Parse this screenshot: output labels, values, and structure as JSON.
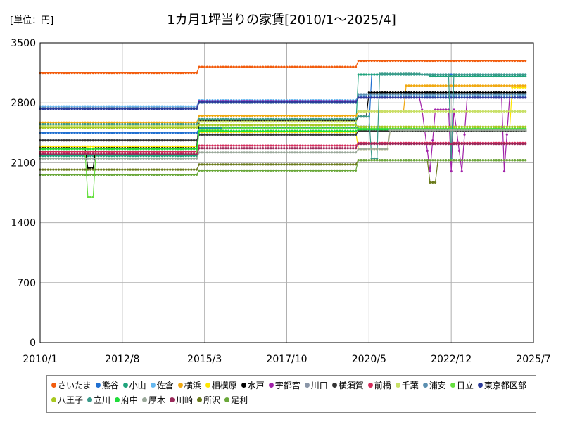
{
  "chart_data": {
    "type": "line",
    "title": "1カ月1坪当りの家賃[2010/1～2025/4]",
    "unit_label": "[単位：円]",
    "xlabel": "",
    "ylabel": "",
    "x_ticks": [
      "2010/1",
      "2012/8",
      "2015/3",
      "2017/10",
      "2020/5",
      "2022/12",
      "2025/7"
    ],
    "y_ticks": [
      "0",
      "700",
      "1400",
      "2100",
      "2800",
      "3500"
    ],
    "ylim": [
      0,
      3500
    ],
    "xlim": [
      "2010/1",
      "2025/7"
    ],
    "grid": true,
    "legend_position": "bottom",
    "marker": "dot",
    "series": [
      {
        "name": "さいたま",
        "color": "#f25c0d",
        "points": [
          [
            "2010/1",
            3150
          ],
          [
            "2014/12",
            3150
          ],
          [
            "2015/1",
            3220
          ],
          [
            "2019/12",
            3220
          ],
          [
            "2020/1",
            3290
          ],
          [
            "2025/4",
            3290
          ]
        ]
      },
      {
        "name": "熊谷",
        "color": "#1f6fd1",
        "points": [
          [
            "2010/1",
            2450
          ],
          [
            "2014/12",
            2450
          ],
          [
            "2015/1",
            2500
          ],
          [
            "2019/12",
            2500
          ],
          [
            "2020/1",
            2520
          ],
          [
            "2020/5",
            2520
          ],
          [
            "2020/6",
            3130
          ],
          [
            "2025/4",
            3130
          ]
        ]
      },
      {
        "name": "小山",
        "color": "#1fa47c",
        "points": [
          [
            "2010/1",
            2180
          ],
          [
            "2014/12",
            2180
          ],
          [
            "2015/1",
            2510
          ],
          [
            "2019/12",
            2510
          ],
          [
            "2020/1",
            3130
          ],
          [
            "2022/3",
            3130
          ],
          [
            "2022/4",
            3110
          ],
          [
            "2025/4",
            3110
          ]
        ]
      },
      {
        "name": "佐倉",
        "color": "#66b8f0",
        "points": [
          [
            "2010/1",
            2760
          ],
          [
            "2014/12",
            2760
          ],
          [
            "2015/1",
            2830
          ],
          [
            "2019/12",
            2830
          ],
          [
            "2020/1",
            2880
          ],
          [
            "2025/4",
            2880
          ]
        ]
      },
      {
        "name": "横浜",
        "color": "#f0a810",
        "points": [
          [
            "2010/1",
            2570
          ],
          [
            "2014/12",
            2570
          ],
          [
            "2015/1",
            2650
          ],
          [
            "2019/12",
            2650
          ],
          [
            "2020/1",
            2700
          ],
          [
            "2021/6",
            2700
          ],
          [
            "2021/7",
            3000
          ],
          [
            "2025/4",
            3000
          ]
        ]
      },
      {
        "name": "相模原",
        "color": "#ffe600",
        "points": [
          [
            "2010/1",
            2290
          ],
          [
            "2014/12",
            2290
          ],
          [
            "2015/1",
            2460
          ],
          [
            "2019/12",
            2460
          ],
          [
            "2020/1",
            2260
          ],
          [
            "2020/12",
            2260
          ],
          [
            "2021/1",
            2480
          ],
          [
            "2024/10",
            2480
          ],
          [
            "2024/11",
            2980
          ],
          [
            "2025/4",
            2980
          ]
        ]
      },
      {
        "name": "水戸",
        "color": "#000000",
        "points": [
          [
            "2010/1",
            2270
          ],
          [
            "2011/6",
            2270
          ],
          [
            "2011/7",
            2040
          ],
          [
            "2011/9",
            2040
          ],
          [
            "2011/10",
            2270
          ],
          [
            "2014/12",
            2270
          ],
          [
            "2015/1",
            2590
          ],
          [
            "2019/12",
            2590
          ],
          [
            "2020/1",
            2640
          ],
          [
            "2020/4",
            2640
          ],
          [
            "2020/5",
            2920
          ],
          [
            "2025/4",
            2920
          ]
        ]
      },
      {
        "name": "宇都宮",
        "color": "#a020a8",
        "points": [
          [
            "2010/1",
            2740
          ],
          [
            "2014/12",
            2740
          ],
          [
            "2015/1",
            2820
          ],
          [
            "2019/12",
            2820
          ],
          [
            "2020/1",
            2860
          ],
          [
            "2021/12",
            2860
          ],
          [
            "2022/1",
            2720
          ],
          [
            "2022/4",
            2000
          ],
          [
            "2022/6",
            2720
          ],
          [
            "2022/11",
            2720
          ],
          [
            "2022/12",
            2000
          ],
          [
            "2023/1",
            2720
          ],
          [
            "2023/4",
            2000
          ],
          [
            "2023/6",
            2860
          ],
          [
            "2024/7",
            2860
          ],
          [
            "2024/8",
            2000
          ],
          [
            "2024/10",
            2860
          ],
          [
            "2025/4",
            2860
          ]
        ]
      },
      {
        "name": "川口",
        "color": "#8a96a8",
        "points": [
          [
            "2010/1",
            2370
          ],
          [
            "2014/12",
            2370
          ],
          [
            "2015/1",
            2420
          ],
          [
            "2019/12",
            2420
          ],
          [
            "2020/1",
            2480
          ],
          [
            "2025/4",
            2480
          ]
        ]
      },
      {
        "name": "横須賀",
        "color": "#333333",
        "points": [
          [
            "2010/1",
            2360
          ],
          [
            "2014/12",
            2360
          ],
          [
            "2015/1",
            2430
          ],
          [
            "2019/12",
            2430
          ],
          [
            "2020/1",
            2470
          ],
          [
            "2025/4",
            2470
          ]
        ]
      },
      {
        "name": "前橋",
        "color": "#d42a5a",
        "points": [
          [
            "2010/1",
            2230
          ],
          [
            "2014/12",
            2230
          ],
          [
            "2015/1",
            2300
          ],
          [
            "2019/12",
            2300
          ],
          [
            "2020/1",
            2330
          ],
          [
            "2025/4",
            2330
          ]
        ]
      },
      {
        "name": "千葉",
        "color": "#c8e066",
        "points": [
          [
            "2010/1",
            2530
          ],
          [
            "2014/12",
            2530
          ],
          [
            "2015/1",
            2580
          ],
          [
            "2019/12",
            2580
          ],
          [
            "2020/1",
            2700
          ],
          [
            "2025/4",
            2700
          ]
        ]
      },
      {
        "name": "浦安",
        "color": "#5b8fb0",
        "points": [
          [
            "2010/1",
            2740
          ],
          [
            "2014/12",
            2740
          ],
          [
            "2015/1",
            2800
          ],
          [
            "2019/12",
            2800
          ],
          [
            "2020/1",
            2900
          ],
          [
            "2025/4",
            2900
          ]
        ]
      },
      {
        "name": "日立",
        "color": "#66e040",
        "points": [
          [
            "2010/1",
            2200
          ],
          [
            "2011/6",
            2200
          ],
          [
            "2011/7",
            1700
          ],
          [
            "2011/9",
            1700
          ],
          [
            "2011/10",
            2200
          ],
          [
            "2014/12",
            2200
          ],
          [
            "2015/1",
            2480
          ],
          [
            "2015/9",
            2480
          ],
          [
            "2015/10",
            2500
          ],
          [
            "2025/4",
            2500
          ]
        ]
      },
      {
        "name": "東京都区部",
        "color": "#2a3a9a",
        "points": [
          [
            "2010/1",
            2730
          ],
          [
            "2014/12",
            2730
          ],
          [
            "2015/1",
            2810
          ],
          [
            "2019/12",
            2810
          ],
          [
            "2020/1",
            2860
          ],
          [
            "2025/4",
            2860
          ]
        ]
      },
      {
        "name": "八王子",
        "color": "#a8c820",
        "points": [
          [
            "2010/1",
            2510
          ],
          [
            "2014/12",
            2510
          ],
          [
            "2015/1",
            2540
          ],
          [
            "2019/12",
            2540
          ],
          [
            "2020/1",
            2520
          ],
          [
            "2025/4",
            2520
          ]
        ]
      },
      {
        "name": "立川",
        "color": "#3a9a8a",
        "points": [
          [
            "2010/1",
            2550
          ],
          [
            "2014/12",
            2550
          ],
          [
            "2015/1",
            2610
          ],
          [
            "2019/12",
            2610
          ],
          [
            "2020/1",
            2640
          ],
          [
            "2020/5",
            2640
          ],
          [
            "2020/6",
            2150
          ],
          [
            "2020/8",
            2150
          ],
          [
            "2020/9",
            3140
          ],
          [
            "2021/12",
            3140
          ],
          [
            "2022/1",
            3130
          ],
          [
            "2022/11",
            3130
          ],
          [
            "2022/12",
            2150
          ],
          [
            "2023/1",
            3130
          ],
          [
            "2025/4",
            3130
          ]
        ]
      },
      {
        "name": "府中",
        "color": "#1fdc3a",
        "points": [
          [
            "2010/1",
            2260
          ],
          [
            "2014/12",
            2260
          ],
          [
            "2015/1",
            2470
          ],
          [
            "2019/12",
            2470
          ],
          [
            "2020/1",
            2490
          ],
          [
            "2025/4",
            2490
          ]
        ]
      },
      {
        "name": "厚木",
        "color": "#9aa89a",
        "points": [
          [
            "2010/1",
            2150
          ],
          [
            "2014/12",
            2150
          ],
          [
            "2015/1",
            2220
          ],
          [
            "2019/12",
            2220
          ],
          [
            "2020/1",
            2260
          ],
          [
            "2020/12",
            2260
          ],
          [
            "2021/1",
            2480
          ],
          [
            "2025/4",
            2480
          ]
        ]
      },
      {
        "name": "川崎",
        "color": "#9a2a5a",
        "points": [
          [
            "2010/1",
            2200
          ],
          [
            "2014/12",
            2200
          ],
          [
            "2015/1",
            2270
          ],
          [
            "2019/12",
            2270
          ],
          [
            "2020/1",
            2320
          ],
          [
            "2025/4",
            2320
          ]
        ]
      },
      {
        "name": "所沢",
        "color": "#6a7a1a",
        "points": [
          [
            "2010/1",
            2020
          ],
          [
            "2014/12",
            2020
          ],
          [
            "2015/1",
            2080
          ],
          [
            "2019/12",
            2080
          ],
          [
            "2020/1",
            2130
          ],
          [
            "2022/3",
            2130
          ],
          [
            "2022/4",
            1870
          ],
          [
            "2022/6",
            1870
          ],
          [
            "2022/7",
            2130
          ],
          [
            "2025/4",
            2130
          ]
        ]
      },
      {
        "name": "足利",
        "color": "#6aa83a",
        "points": [
          [
            "2010/1",
            1960
          ],
          [
            "2014/12",
            1960
          ],
          [
            "2015/1",
            2010
          ],
          [
            "2019/12",
            2010
          ],
          [
            "2020/1",
            2130
          ],
          [
            "2025/4",
            2130
          ]
        ]
      }
    ]
  }
}
